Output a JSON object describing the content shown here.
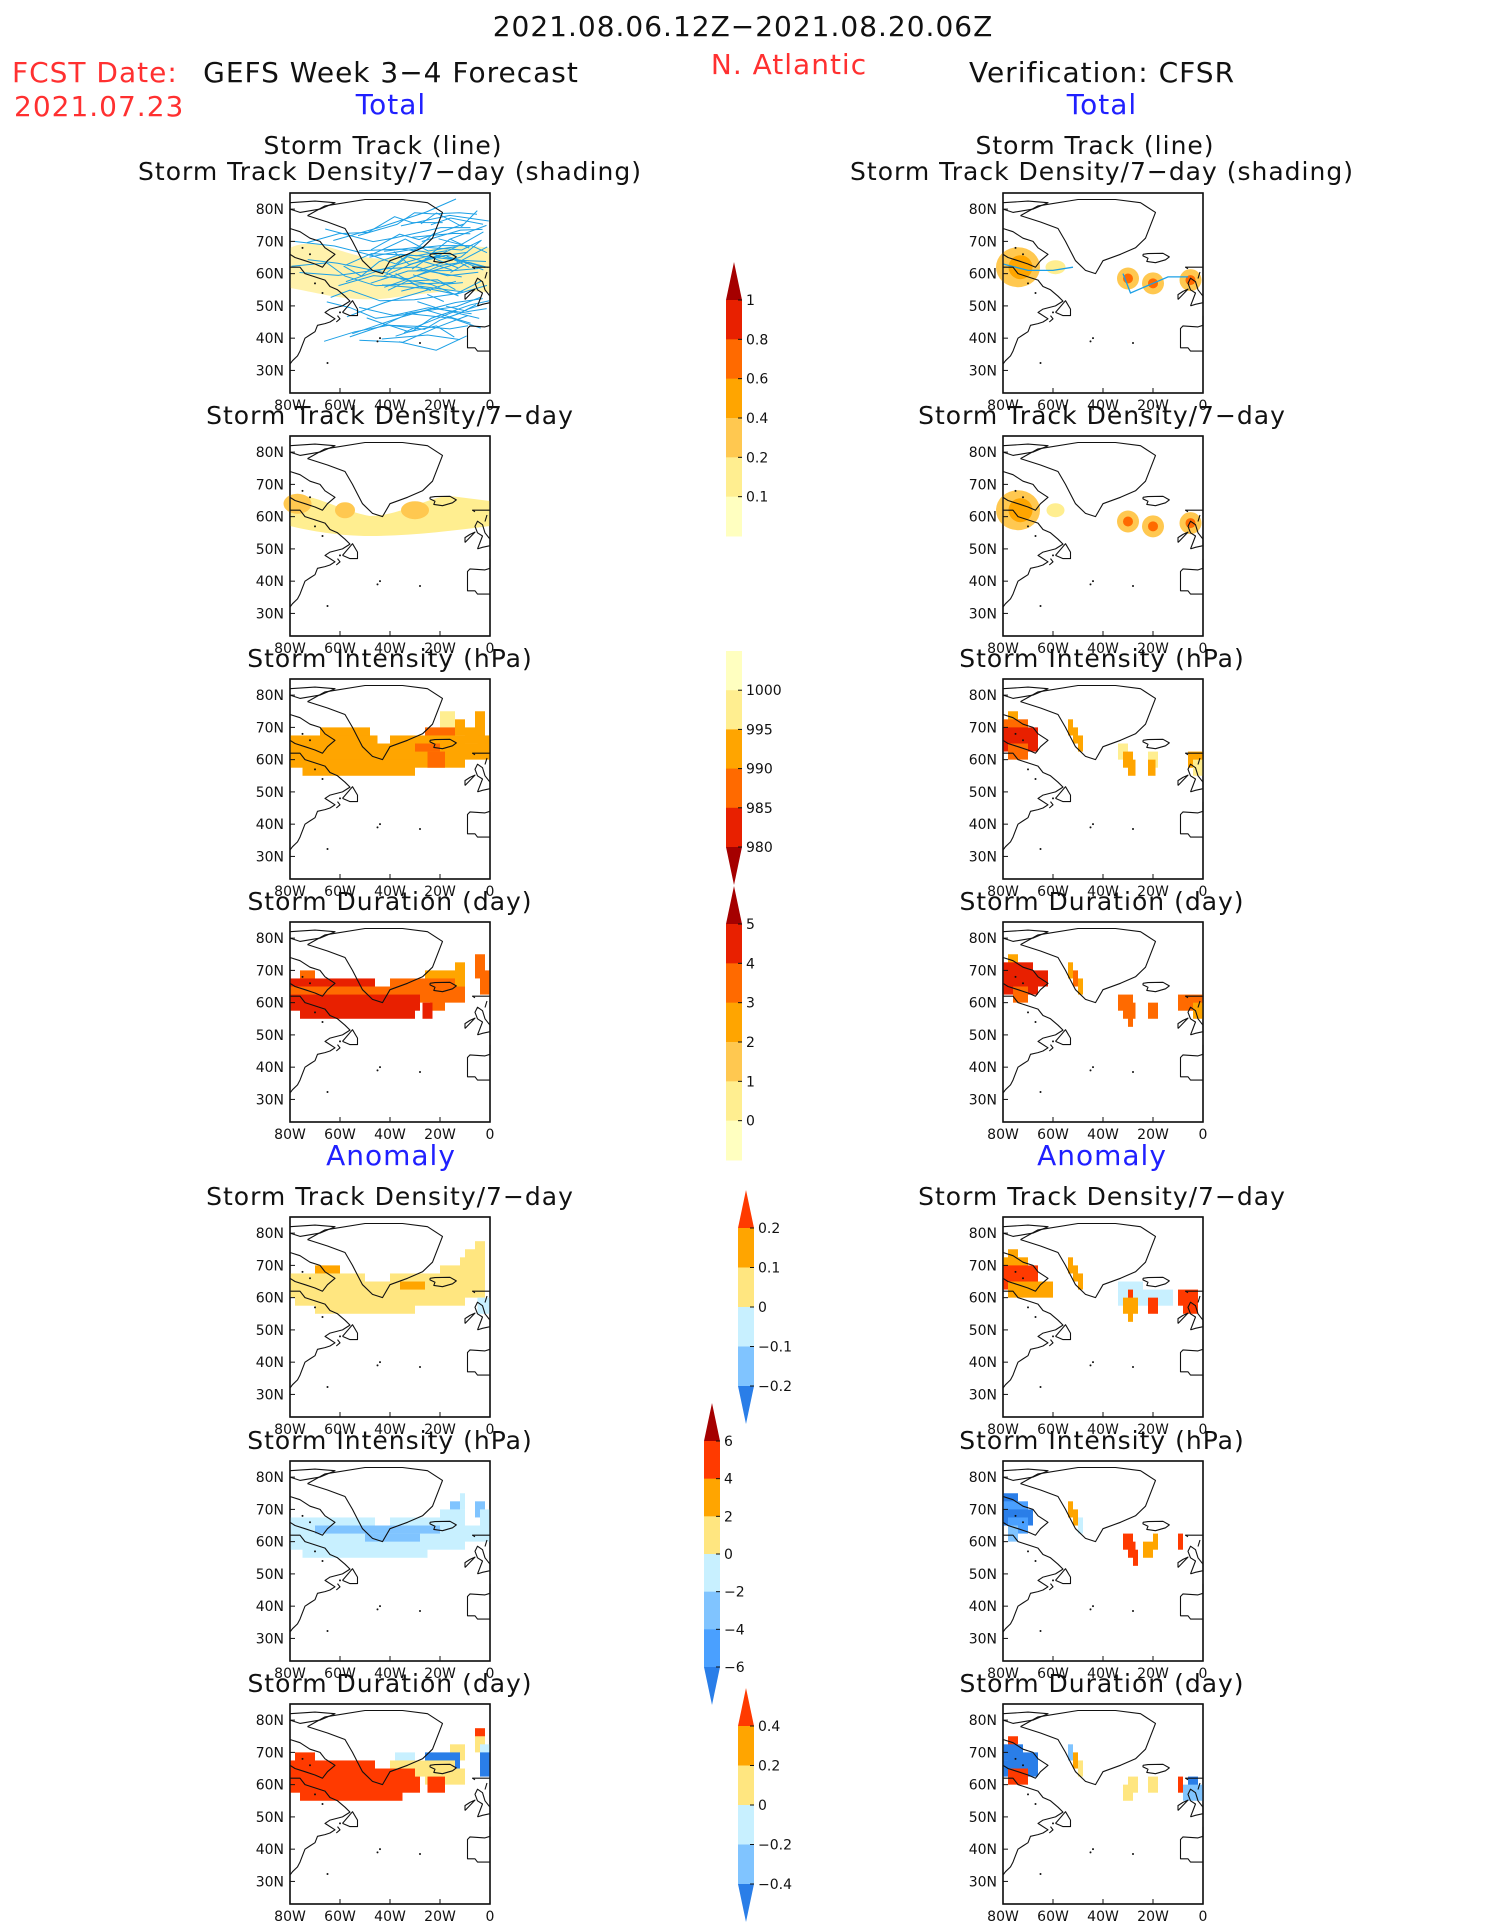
{
  "header": {
    "period": "2021.08.06.12Z−2021.08.20.06Z",
    "fcst_label": "FCST Date:",
    "fcst_date": "2021.07.23",
    "model": "GEFS Week 3−4 Forecast",
    "region": "N. Atlantic",
    "verification": "Verification: CFSR"
  },
  "sections": {
    "total": "Total",
    "anomaly": "Anomaly"
  },
  "titles": {
    "track_line": "Storm Track (line)",
    "track_density_shading": "Storm Track Density/7−day (shading)",
    "track_density": "Storm Track Density/7−day",
    "intensity": "Storm Intensity (hPa)",
    "duration": "Storm Duration (day)"
  },
  "axes": {
    "lat_labels": [
      "80N",
      "70N",
      "60N",
      "50N",
      "40N",
      "30N"
    ],
    "lon_labels": [
      "80W",
      "60W",
      "40W",
      "20W",
      "0"
    ]
  },
  "colorbars": {
    "density_total": {
      "ticks": [
        "1",
        "0.8",
        "0.6",
        "0.4",
        "0.2",
        "0.1"
      ],
      "colors": [
        "#a50000",
        "#e82000",
        "#ff6a00",
        "#ffa500",
        "#ffc850",
        "#ffee90",
        "#ffffc0"
      ]
    },
    "intensity_total": {
      "ticks": [
        "1000",
        "995",
        "990",
        "985",
        "980"
      ],
      "colors": [
        "#ffffc0",
        "#ffee90",
        "#ffa500",
        "#ff6a00",
        "#e82000",
        "#a50000"
      ]
    },
    "duration_total": {
      "ticks": [
        "5",
        "4",
        "3",
        "2",
        "1",
        "0"
      ],
      "colors": [
        "#a50000",
        "#e82000",
        "#ff6a00",
        "#ffa500",
        "#ffc850",
        "#ffee90",
        "#ffffc0"
      ]
    },
    "density_anom": {
      "ticks": [
        "0.2",
        "0.1",
        "0",
        "−0.1",
        "−0.2"
      ],
      "colors": [
        "#ff3a00",
        "#ffa500",
        "#ffe680",
        "#c8f0ff",
        "#80c4ff",
        "#2a7ee8"
      ]
    },
    "intensity_anom": {
      "ticks": [
        "6",
        "4",
        "2",
        "0",
        "−2",
        "−4",
        "−6"
      ],
      "colors": [
        "#a50000",
        "#ff3a00",
        "#ffa500",
        "#ffe680",
        "#c8f0ff",
        "#80c4ff",
        "#4aa0ff",
        "#2a7ee8"
      ]
    },
    "duration_anom": {
      "ticks": [
        "0.4",
        "0.2",
        "0",
        "−0.2",
        "−0.4"
      ],
      "colors": [
        "#ff3a00",
        "#ffa500",
        "#ffe680",
        "#c8f0ff",
        "#80c4ff",
        "#2a7ee8"
      ]
    }
  }
}
